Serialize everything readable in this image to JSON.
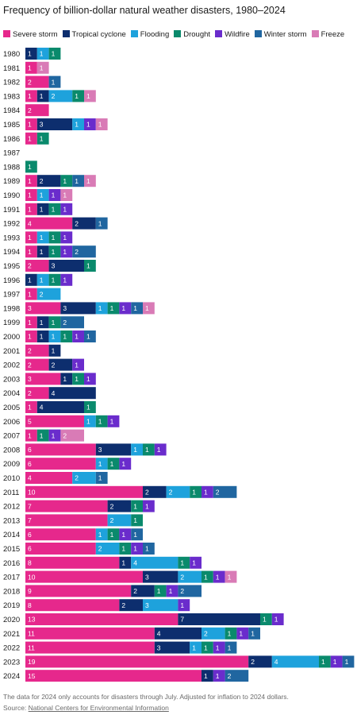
{
  "chart_data": {
    "type": "bar",
    "orientation": "horizontal",
    "stacked": true,
    "title": "Frequency of billion-dollar natural weather disasters, 1980–2024",
    "legend_position": "top",
    "categories": [
      "1980",
      "1981",
      "1982",
      "1983",
      "1984",
      "1985",
      "1986",
      "1987",
      "1988",
      "1989",
      "1990",
      "1991",
      "1992",
      "1993",
      "1994",
      "1995",
      "1996",
      "1997",
      "1998",
      "1999",
      "2000",
      "2001",
      "2002",
      "2003",
      "2004",
      "2005",
      "2006",
      "2007",
      "2008",
      "2009",
      "2010",
      "2011",
      "2012",
      "2013",
      "2014",
      "2015",
      "2016",
      "2017",
      "2018",
      "2019",
      "2020",
      "2021",
      "2022",
      "2023",
      "2024"
    ],
    "series": [
      {
        "name": "Severe storm",
        "color": "#e6288c",
        "values": [
          0,
          1,
          2,
          1,
          2,
          1,
          1,
          0,
          0,
          1,
          1,
          1,
          4,
          1,
          1,
          2,
          0,
          1,
          3,
          1,
          1,
          2,
          2,
          3,
          2,
          1,
          5,
          1,
          6,
          6,
          4,
          10,
          7,
          7,
          6,
          6,
          8,
          10,
          9,
          8,
          13,
          11,
          11,
          19,
          15
        ]
      },
      {
        "name": "Tropical cyclone",
        "color": "#0d2e6e",
        "values": [
          1,
          0,
          0,
          1,
          0,
          3,
          0,
          0,
          0,
          2,
          0,
          1,
          2,
          0,
          1,
          3,
          1,
          0,
          3,
          1,
          1,
          1,
          2,
          1,
          4,
          4,
          0,
          0,
          3,
          0,
          0,
          2,
          2,
          0,
          0,
          0,
          1,
          3,
          2,
          2,
          7,
          4,
          3,
          2,
          1
        ]
      },
      {
        "name": "Flooding",
        "color": "#1ea2dc",
        "values": [
          1,
          0,
          0,
          2,
          0,
          1,
          0,
          0,
          0,
          0,
          1,
          0,
          0,
          1,
          0,
          0,
          1,
          2,
          1,
          0,
          1,
          0,
          0,
          0,
          0,
          0,
          1,
          0,
          1,
          1,
          2,
          2,
          0,
          2,
          1,
          2,
          4,
          2,
          0,
          3,
          0,
          2,
          1,
          4,
          0
        ]
      },
      {
        "name": "Drought",
        "color": "#0a8a6c",
        "values": [
          1,
          0,
          0,
          1,
          0,
          0,
          1,
          0,
          1,
          1,
          0,
          1,
          0,
          1,
          1,
          1,
          1,
          0,
          1,
          1,
          1,
          0,
          0,
          1,
          0,
          1,
          1,
          1,
          1,
          1,
          0,
          1,
          1,
          1,
          1,
          1,
          1,
          1,
          1,
          0,
          1,
          1,
          1,
          1,
          0
        ]
      },
      {
        "name": "Wildfire",
        "color": "#6a2ccc",
        "values": [
          0,
          0,
          0,
          0,
          0,
          1,
          0,
          0,
          0,
          0,
          1,
          1,
          0,
          1,
          1,
          0,
          1,
          0,
          1,
          0,
          1,
          0,
          1,
          1,
          0,
          0,
          1,
          1,
          1,
          1,
          0,
          1,
          1,
          0,
          1,
          1,
          1,
          1,
          1,
          1,
          1,
          1,
          1,
          1,
          1
        ]
      },
      {
        "name": "Winter storm",
        "color": "#2066a0",
        "values": [
          0,
          0,
          1,
          0,
          0,
          0,
          0,
          0,
          0,
          1,
          0,
          0,
          1,
          0,
          2,
          0,
          0,
          0,
          1,
          2,
          1,
          0,
          0,
          0,
          0,
          0,
          0,
          0,
          0,
          0,
          1,
          2,
          0,
          0,
          1,
          1,
          0,
          0,
          2,
          0,
          0,
          1,
          1,
          1,
          2
        ]
      },
      {
        "name": "Freeze",
        "color": "#d97bb6",
        "values": [
          0,
          1,
          0,
          1,
          0,
          1,
          0,
          0,
          0,
          1,
          1,
          0,
          0,
          0,
          0,
          0,
          0,
          0,
          1,
          0,
          0,
          0,
          0,
          0,
          0,
          0,
          0,
          2,
          0,
          0,
          0,
          0,
          0,
          0,
          0,
          0,
          0,
          1,
          0,
          0,
          0,
          0,
          0,
          0,
          0
        ]
      }
    ],
    "note": "The data for 2024 only accounts for disasters through July. Adjusted for inflation to 2024 dollars.",
    "source_prefix": "Source: ",
    "source_link": "National Centers for Environmental Information"
  }
}
